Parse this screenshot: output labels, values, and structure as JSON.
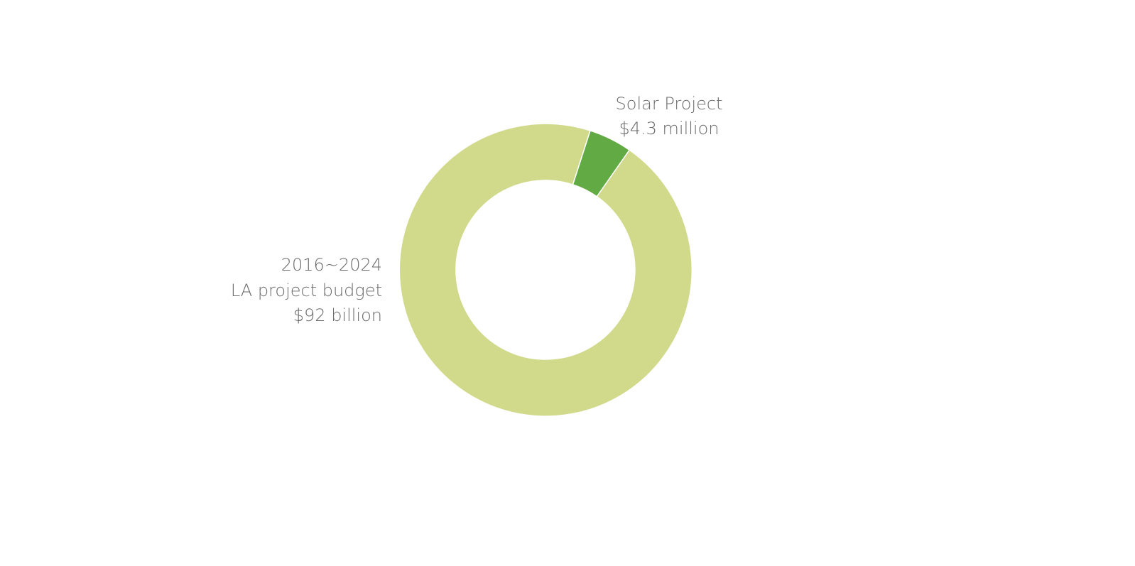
{
  "labels": {
    "solar": [
      "Solar Project",
      "$4.3 million"
    ],
    "budget": [
      "2016~2024",
      "LA project budget",
      "$92 billion"
    ]
  }
}
